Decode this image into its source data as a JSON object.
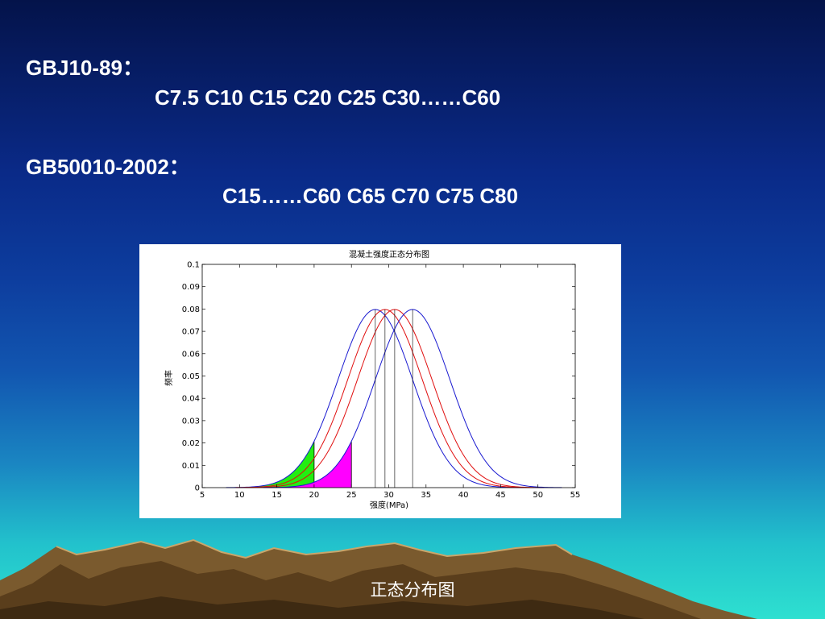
{
  "slide": {
    "line1": "GBJ10-89：",
    "line2": "C7.5  C10  C15  C20  C25  C30……C60",
    "line3": "GB50010-2002：",
    "line4": "C15……C60  C65  C70  C75  C80",
    "caption": "正态分布图"
  },
  "colors": {
    "text": "#ffffff",
    "blue_curve": "#1a1ad0",
    "red_curve": "#e01010",
    "green_fill": "#22ee11",
    "magenta_fill": "#ff00ff"
  },
  "chart_data": {
    "type": "line",
    "title": "混凝土强度正态分布图",
    "xlabel": "强度(MPa)",
    "ylabel": "频率",
    "xlim": [
      5,
      55
    ],
    "ylim": [
      0,
      0.1
    ],
    "xticks": [
      5,
      10,
      15,
      20,
      25,
      30,
      35,
      40,
      45,
      50,
      55
    ],
    "yticks": [
      0,
      0.01,
      0.02,
      0.03,
      0.04,
      0.05,
      0.06,
      0.07,
      0.08,
      0.09,
      0.1
    ],
    "ytick_labels": [
      "0",
      "0.01",
      "0.02",
      "0.03",
      "0.04",
      "0.05",
      "0.06",
      "0.07",
      "0.08",
      "0.09",
      "0.1"
    ],
    "grid": false,
    "series": [
      {
        "mean": 28.2,
        "sd": 5.0,
        "color": "blue",
        "fill_below": 20,
        "fill_color": "green"
      },
      {
        "mean": 29.5,
        "sd": 5.0,
        "color": "red"
      },
      {
        "mean": 30.8,
        "sd": 5.0,
        "color": "red"
      },
      {
        "mean": 33.2,
        "sd": 5.0,
        "color": "blue",
        "fill_below": 25,
        "fill_color": "magenta"
      }
    ]
  }
}
